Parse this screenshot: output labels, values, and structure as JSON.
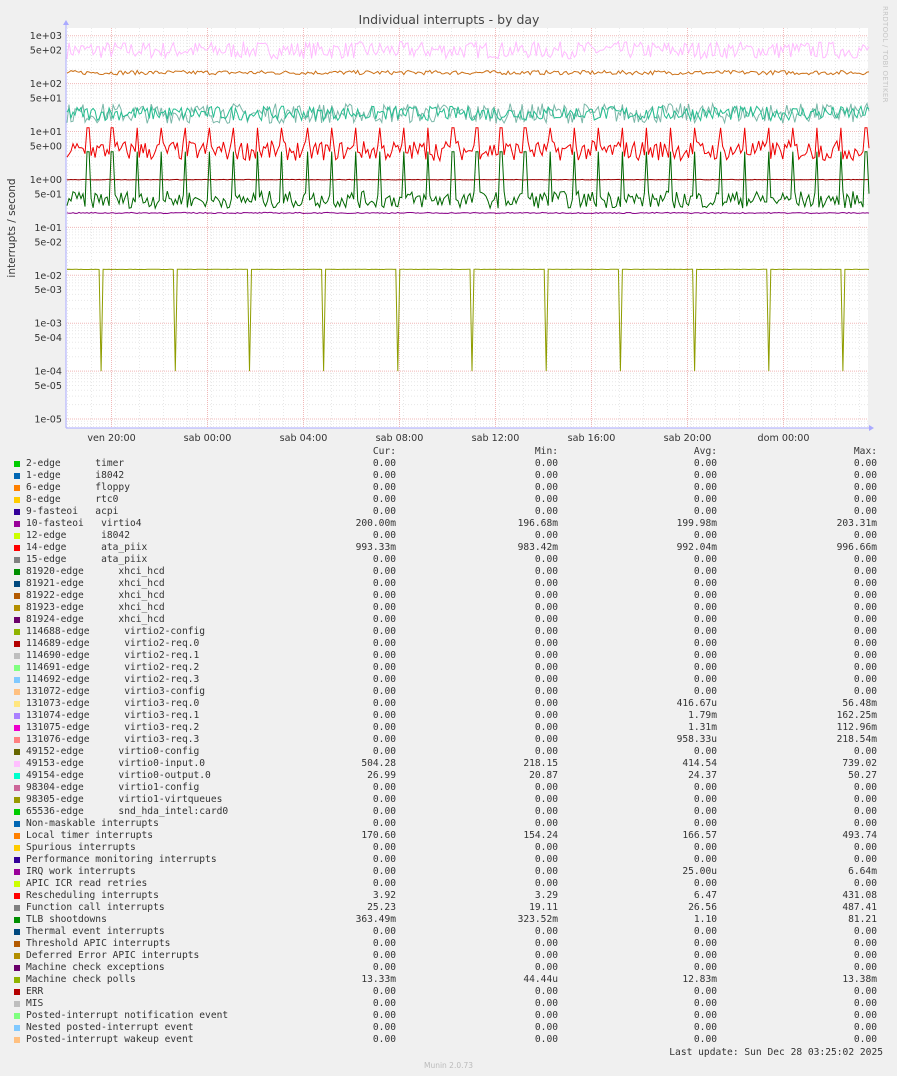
{
  "chart_data": {
    "type": "line",
    "title": "Individual interrupts - by day",
    "ylabel": "interrupts / second",
    "yscale": "log",
    "ylim": [
      6.5e-06,
      1450
    ],
    "y_ticks": [
      "1e+03",
      "5e+02",
      "1e+02",
      "5e+01",
      "1e+01",
      "5e+00",
      "1e+00",
      "5e-01",
      "1e-01",
      "5e-02",
      "1e-02",
      "5e-03",
      "1e-03",
      "5e-04",
      "1e-04",
      "5e-05",
      "1e-05"
    ],
    "x_ticks": [
      "ven 20:00",
      "sab 00:00",
      "sab 04:00",
      "sab 08:00",
      "sab 12:00",
      "sab 16:00",
      "sab 20:00",
      "dom 00:00"
    ],
    "series": [
      {
        "name": "49153-edge virtio0-input.0",
        "color": "#ffbbff",
        "level": 500,
        "jitter": 0.06
      },
      {
        "name": "Local timer interrupts",
        "color": "#cc7016",
        "level": 170,
        "jitter": 0.015
      },
      {
        "name": "Function call interrupts",
        "color": "#7ab7a8",
        "level": 24,
        "jitter": 0.07
      },
      {
        "name": "49154-edge virtio0-output.0",
        "color": "#24bc8f",
        "level": 24,
        "jitter": 0.05
      },
      {
        "name": "Rescheduling interrupts",
        "color": "#ee0000",
        "level": 4,
        "jitter": 0.07
      },
      {
        "name": "14-edge ata_piix",
        "color": "#990000",
        "level": 0.99,
        "jitter": 0.002
      },
      {
        "name": "TLB shootdowns",
        "color": "#006600",
        "level": 0.38,
        "jitter": 0.06
      },
      {
        "name": "10-fasteoi virtio4",
        "color": "#880088",
        "level": 0.2,
        "jitter": 0.004
      },
      {
        "name": "Machine check polls",
        "color": "#8f9d00",
        "level": 0.0133,
        "jitter": 0.001
      }
    ],
    "legend": {
      "headers": [
        "Cur:",
        "Min:",
        "Avg:",
        "Max:"
      ],
      "rows": [
        {
          "name": "2-edge      timer",
          "color": "#00cc00",
          "cur": "0.00",
          "min": "0.00",
          "avg": "0.00",
          "max": "0.00"
        },
        {
          "name": "1-edge      i8042",
          "color": "#0066b3",
          "cur": "0.00",
          "min": "0.00",
          "avg": "0.00",
          "max": "0.00"
        },
        {
          "name": "6-edge      floppy",
          "color": "#ff8000",
          "cur": "0.00",
          "min": "0.00",
          "avg": "0.00",
          "max": "0.00"
        },
        {
          "name": "8-edge      rtc0",
          "color": "#ffcc00",
          "cur": "0.00",
          "min": "0.00",
          "avg": "0.00",
          "max": "0.00"
        },
        {
          "name": "9-fasteoi   acpi",
          "color": "#330099",
          "cur": "0.00",
          "min": "0.00",
          "avg": "0.00",
          "max": "0.00"
        },
        {
          "name": "10-fasteoi   virtio4",
          "color": "#990099",
          "cur": "200.00m",
          "min": "196.68m",
          "avg": "199.98m",
          "max": "203.31m"
        },
        {
          "name": "12-edge      i8042",
          "color": "#ccff00",
          "cur": "0.00",
          "min": "0.00",
          "avg": "0.00",
          "max": "0.00"
        },
        {
          "name": "14-edge      ata_piix",
          "color": "#ff0000",
          "cur": "993.33m",
          "min": "983.42m",
          "avg": "992.04m",
          "max": "996.66m"
        },
        {
          "name": "15-edge      ata_piix",
          "color": "#808080",
          "cur": "0.00",
          "min": "0.00",
          "avg": "0.00",
          "max": "0.00"
        },
        {
          "name": "81920-edge      xhci_hcd",
          "color": "#008f00",
          "cur": "0.00",
          "min": "0.00",
          "avg": "0.00",
          "max": "0.00"
        },
        {
          "name": "81921-edge      xhci_hcd",
          "color": "#00487d",
          "cur": "0.00",
          "min": "0.00",
          "avg": "0.00",
          "max": "0.00"
        },
        {
          "name": "81922-edge      xhci_hcd",
          "color": "#b35a00",
          "cur": "0.00",
          "min": "0.00",
          "avg": "0.00",
          "max": "0.00"
        },
        {
          "name": "81923-edge      xhci_hcd",
          "color": "#b38f00",
          "cur": "0.00",
          "min": "0.00",
          "avg": "0.00",
          "max": "0.00"
        },
        {
          "name": "81924-edge      xhci_hcd",
          "color": "#6b006b",
          "cur": "0.00",
          "min": "0.00",
          "avg": "0.00",
          "max": "0.00"
        },
        {
          "name": "114688-edge      virtio2-config",
          "color": "#8fb300",
          "cur": "0.00",
          "min": "0.00",
          "avg": "0.00",
          "max": "0.00"
        },
        {
          "name": "114689-edge      virtio2-req.0",
          "color": "#b30000",
          "cur": "0.00",
          "min": "0.00",
          "avg": "0.00",
          "max": "0.00"
        },
        {
          "name": "114690-edge      virtio2-req.1",
          "color": "#bebebe",
          "cur": "0.00",
          "min": "0.00",
          "avg": "0.00",
          "max": "0.00"
        },
        {
          "name": "114691-edge      virtio2-req.2",
          "color": "#80ff80",
          "cur": "0.00",
          "min": "0.00",
          "avg": "0.00",
          "max": "0.00"
        },
        {
          "name": "114692-edge      virtio2-req.3",
          "color": "#80c9ff",
          "cur": "0.00",
          "min": "0.00",
          "avg": "0.00",
          "max": "0.00"
        },
        {
          "name": "131072-edge      virtio3-config",
          "color": "#ffc080",
          "cur": "0.00",
          "min": "0.00",
          "avg": "0.00",
          "max": "0.00"
        },
        {
          "name": "131073-edge      virtio3-req.0",
          "color": "#ffe680",
          "cur": "0.00",
          "min": "0.00",
          "avg": "416.67u",
          "max": "56.48m"
        },
        {
          "name": "131074-edge      virtio3-req.1",
          "color": "#aa80ff",
          "cur": "0.00",
          "min": "0.00",
          "avg": "1.79m",
          "max": "162.25m"
        },
        {
          "name": "131075-edge      virtio3-req.2",
          "color": "#ee00cc",
          "cur": "0.00",
          "min": "0.00",
          "avg": "1.31m",
          "max": "112.96m"
        },
        {
          "name": "131076-edge      virtio3-req.3",
          "color": "#ff8080",
          "cur": "0.00",
          "min": "0.00",
          "avg": "958.33u",
          "max": "218.54m"
        },
        {
          "name": "49152-edge      virtio0-config",
          "color": "#666600",
          "cur": "0.00",
          "min": "0.00",
          "avg": "0.00",
          "max": "0.00"
        },
        {
          "name": "49153-edge      virtio0-input.0",
          "color": "#ffbfff",
          "cur": "504.28",
          "min": "218.15",
          "avg": "414.54",
          "max": "739.02"
        },
        {
          "name": "49154-edge      virtio0-output.0",
          "color": "#00ffcc",
          "cur": "26.99",
          "min": "20.87",
          "avg": "24.37",
          "max": "50.27"
        },
        {
          "name": "98304-edge      virtio1-config",
          "color": "#cc6699",
          "cur": "0.00",
          "min": "0.00",
          "avg": "0.00",
          "max": "0.00"
        },
        {
          "name": "98305-edge      virtio1-virtqueues",
          "color": "#999900",
          "cur": "0.00",
          "min": "0.00",
          "avg": "0.00",
          "max": "0.00"
        },
        {
          "name": "65536-edge      snd_hda_intel:card0",
          "color": "#00cc00",
          "cur": "0.00",
          "min": "0.00",
          "avg": "0.00",
          "max": "0.00"
        },
        {
          "name": "Non-maskable interrupts",
          "color": "#0066b3",
          "cur": "0.00",
          "min": "0.00",
          "avg": "0.00",
          "max": "0.00"
        },
        {
          "name": "Local timer interrupts",
          "color": "#ff8000",
          "cur": "170.60",
          "min": "154.24",
          "avg": "166.57",
          "max": "493.74"
        },
        {
          "name": "Spurious interrupts",
          "color": "#ffcc00",
          "cur": "0.00",
          "min": "0.00",
          "avg": "0.00",
          "max": "0.00"
        },
        {
          "name": "Performance monitoring interrupts",
          "color": "#330099",
          "cur": "0.00",
          "min": "0.00",
          "avg": "0.00",
          "max": "0.00"
        },
        {
          "name": "IRQ work interrupts",
          "color": "#990099",
          "cur": "0.00",
          "min": "0.00",
          "avg": "25.00u",
          "max": "6.64m"
        },
        {
          "name": "APIC ICR read retries",
          "color": "#ccff00",
          "cur": "0.00",
          "min": "0.00",
          "avg": "0.00",
          "max": "0.00"
        },
        {
          "name": "Rescheduling interrupts",
          "color": "#ff0000",
          "cur": "3.92",
          "min": "3.29",
          "avg": "6.47",
          "max": "431.08"
        },
        {
          "name": "Function call interrupts",
          "color": "#808080",
          "cur": "25.23",
          "min": "19.11",
          "avg": "26.56",
          "max": "487.41"
        },
        {
          "name": "TLB shootdowns",
          "color": "#008f00",
          "cur": "363.49m",
          "min": "323.52m",
          "avg": "1.10",
          "max": "81.21"
        },
        {
          "name": "Thermal event interrupts",
          "color": "#00487d",
          "cur": "0.00",
          "min": "0.00",
          "avg": "0.00",
          "max": "0.00"
        },
        {
          "name": "Threshold APIC interrupts",
          "color": "#b35a00",
          "cur": "0.00",
          "min": "0.00",
          "avg": "0.00",
          "max": "0.00"
        },
        {
          "name": "Deferred Error APIC interrupts",
          "color": "#b38f00",
          "cur": "0.00",
          "min": "0.00",
          "avg": "0.00",
          "max": "0.00"
        },
        {
          "name": "Machine check exceptions",
          "color": "#6b006b",
          "cur": "0.00",
          "min": "0.00",
          "avg": "0.00",
          "max": "0.00"
        },
        {
          "name": "Machine check polls",
          "color": "#8fb300",
          "cur": "13.33m",
          "min": "44.44u",
          "avg": "12.83m",
          "max": "13.38m"
        },
        {
          "name": "ERR",
          "color": "#b30000",
          "cur": "0.00",
          "min": "0.00",
          "avg": "0.00",
          "max": "0.00"
        },
        {
          "name": "MIS",
          "color": "#bebebe",
          "cur": "0.00",
          "min": "0.00",
          "avg": "0.00",
          "max": "0.00"
        },
        {
          "name": "Posted-interrupt notification event",
          "color": "#80ff80",
          "cur": "0.00",
          "min": "0.00",
          "avg": "0.00",
          "max": "0.00"
        },
        {
          "name": "Nested posted-interrupt event",
          "color": "#80c9ff",
          "cur": "0.00",
          "min": "0.00",
          "avg": "0.00",
          "max": "0.00"
        },
        {
          "name": "Posted-interrupt wakeup event",
          "color": "#ffc080",
          "cur": "0.00",
          "min": "0.00",
          "avg": "0.00",
          "max": "0.00"
        }
      ]
    }
  },
  "footer": {
    "last_update": "Last update: Sun Dec 28 03:25:02 2025",
    "version": "Munin 2.0.73",
    "vendor": "RRDTOOL / TOBI OETIKER"
  }
}
